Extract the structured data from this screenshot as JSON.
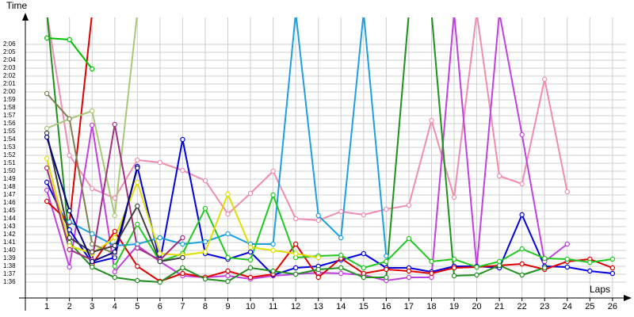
{
  "chart_data": {
    "type": "line",
    "y_label": "Time",
    "x_label": "Laps",
    "x": [
      1,
      2,
      3,
      4,
      5,
      6,
      7,
      8,
      9,
      10,
      11,
      12,
      13,
      14,
      15,
      16,
      17,
      18,
      19,
      20,
      21,
      22,
      23,
      24,
      25,
      26
    ],
    "xlim": [
      0.05,
      26.6
    ],
    "xticks": [
      1,
      2,
      3,
      4,
      5,
      6,
      7,
      8,
      9,
      10,
      11,
      12,
      13,
      14,
      15,
      16,
      17,
      18,
      19,
      20,
      21,
      22,
      23,
      24,
      25,
      26
    ],
    "ylim": [
      94,
      128.6
    ],
    "yticks": [
      {
        "value": 96,
        "label": "1:36"
      },
      {
        "value": 97,
        "label": "1:37"
      },
      {
        "value": 98,
        "label": "1:38"
      },
      {
        "value": 99,
        "label": "1:39"
      },
      {
        "value": 100,
        "label": "1:40"
      },
      {
        "value": 101,
        "label": "1:41"
      },
      {
        "value": 102,
        "label": "1:42"
      },
      {
        "value": 103,
        "label": "1:43"
      },
      {
        "value": 104,
        "label": "1:44"
      },
      {
        "value": 105,
        "label": "1:45"
      },
      {
        "value": 106,
        "label": "1:46"
      },
      {
        "value": 107,
        "label": "1:47"
      },
      {
        "value": 108,
        "label": "1:48"
      },
      {
        "value": 109,
        "label": "1:49"
      },
      {
        "value": 110,
        "label": "1:50"
      },
      {
        "value": 111,
        "label": "1:51"
      },
      {
        "value": 112,
        "label": "1:52"
      },
      {
        "value": 113,
        "label": "1:53"
      },
      {
        "value": 114,
        "label": "1:54"
      },
      {
        "value": 115,
        "label": "1:55"
      },
      {
        "value": 116,
        "label": "1:56"
      },
      {
        "value": 117,
        "label": "1:57"
      },
      {
        "value": 118,
        "label": "1:58"
      },
      {
        "value": 119,
        "label": "1:59"
      },
      {
        "value": 120,
        "label": "2:00"
      },
      {
        "value": 121,
        "label": "2:01"
      },
      {
        "value": 122,
        "label": "2:02"
      },
      {
        "value": 123,
        "label": "2:03"
      },
      {
        "value": 124,
        "label": "2:04"
      },
      {
        "value": 125,
        "label": "2:05"
      },
      {
        "value": 126,
        "label": "2:06"
      }
    ],
    "grid": true,
    "series": [
      {
        "color": "#f08cb0",
        "values": [
          130,
          112,
          107.8,
          106.6,
          111.4,
          111.1,
          110.1,
          108.8,
          104.6,
          107.2,
          110,
          104,
          103.8,
          104.9,
          104.5,
          105.2,
          105.7,
          116.4,
          106.7,
          130,
          109.4,
          108.4,
          121.6,
          107.4,
          null,
          null
        ]
      },
      {
        "color": "#c040e0",
        "values": [
          107.6,
          97.9,
          115.8,
          97.3,
          100.6,
          98.6,
          96.8,
          96.6,
          96.8,
          96.4,
          96.8,
          97,
          97.2,
          97.1,
          96.9,
          96.2,
          96.6,
          96.6,
          130,
          97.9,
          130,
          114.6,
          98.6,
          100.8,
          null,
          null
        ]
      },
      {
        "color": "#0000e0",
        "values": [
          108.6,
          102.6,
          98.4,
          99.1,
          110.6,
          98.6,
          114,
          99.6,
          98.9,
          99.8,
          96.9,
          97.8,
          98,
          98.8,
          99.6,
          97.8,
          97.8,
          97.3,
          98,
          98,
          97.8,
          104.5,
          98,
          97.9,
          97.4,
          97.1
        ]
      },
      {
        "color": "#e00000",
        "values": [
          106.2,
          103.5,
          130,
          null,
          null,
          null,
          null,
          null,
          null,
          null,
          null,
          null,
          null,
          null,
          null,
          null,
          null,
          null,
          null,
          null,
          null,
          null,
          null,
          null,
          null,
          null
        ]
      },
      {
        "color": "#e00000",
        "values": [
          null,
          null,
          98.2,
          102.4,
          98,
          96.1,
          97.1,
          96.6,
          97.4,
          96.6,
          97,
          100.8,
          96.6,
          99,
          97.1,
          97.6,
          97.4,
          97.1,
          97.8,
          97.9,
          98.1,
          98.3,
          97.6,
          98.6,
          98.9,
          97.8
        ]
      },
      {
        "color": "#1ea0e0",
        "values": [
          null,
          103.6,
          102.1,
          100.6,
          100.8,
          101.6,
          100.8,
          101.1,
          102.1,
          100.8,
          100.8,
          130,
          104.4,
          101.6,
          130,
          99.3,
          null,
          null,
          null,
          null,
          null,
          null,
          null,
          null,
          null,
          null
        ]
      },
      {
        "color": "#209020",
        "values": [
          130,
          101,
          97.9,
          96.6,
          96.2,
          96,
          97.8,
          96.4,
          96.1,
          97.8,
          97.4,
          97,
          97.6,
          97.8,
          96.6,
          96.6,
          130,
          130,
          96.8,
          96.9,
          98.1,
          96.9,
          97.8,
          null,
          null,
          null
        ]
      },
      {
        "color": "#20c820",
        "values": [
          null,
          null,
          null,
          98,
          103.3,
          98.6,
          99.6,
          105.3,
          99.1,
          98.8,
          107,
          99.1,
          99.3,
          99.4,
          97.8,
          98.6,
          101.5,
          98.6,
          98.9,
          97.9,
          98.6,
          100.2,
          99,
          98.9,
          98.5,
          98.9
        ]
      },
      {
        "color": "#00c000",
        "values": [
          126.8,
          126.6,
          122.9,
          null,
          null,
          null,
          null,
          null,
          null,
          null,
          null,
          null,
          null,
          null,
          null,
          null,
          null,
          null,
          null,
          null,
          null,
          null,
          null,
          null,
          null,
          null
        ]
      },
      {
        "color": "#e0e000",
        "values": [
          111.6,
          100.6,
          99.6,
          101.6,
          108.6,
          99.6,
          99.4,
          99.8,
          107.1,
          100.4,
          100,
          99.6,
          99.1,
          null,
          null,
          null,
          null,
          null,
          null,
          null,
          null,
          null,
          null,
          null,
          null,
          null
        ]
      },
      {
        "color": "#a8c878",
        "values": [
          115.4,
          116.6,
          117.6,
          104.4,
          130,
          null,
          null,
          null,
          null,
          null,
          null,
          null,
          null,
          null,
          null,
          null,
          null,
          null,
          null,
          null,
          null,
          null,
          null,
          null,
          null,
          null
        ]
      },
      {
        "color": "#808050",
        "values": [
          119.8,
          116.6,
          100.8,
          99.6,
          null,
          null,
          null,
          null,
          null,
          null,
          null,
          null,
          null,
          null,
          null,
          null,
          null,
          null,
          null,
          null,
          null,
          null,
          null,
          null,
          null,
          null
        ]
      },
      {
        "color": "#a03080",
        "values": [
          110.4,
          100.1,
          98.8,
          115.9,
          100.3,
          98.8,
          101.6,
          null,
          null,
          null,
          null,
          null,
          null,
          null,
          null,
          null,
          null,
          null,
          null,
          null,
          null,
          null,
          null,
          null,
          null,
          null
        ]
      },
      {
        "color": "#404040",
        "values": [
          114.8,
          101.6,
          99.8,
          100.6,
          105.6,
          98.6,
          99.1,
          null,
          null,
          null,
          null,
          null,
          null,
          null,
          null,
          null,
          null,
          null,
          null,
          null,
          null,
          null,
          null,
          null,
          null,
          null
        ]
      },
      {
        "color": "#000080",
        "values": [
          114.3,
          105,
          98.6,
          99.8,
          110.4,
          null,
          null,
          null,
          null,
          null,
          null,
          null,
          null,
          null,
          null,
          null,
          null,
          null,
          null,
          null,
          null,
          null,
          null,
          null,
          null,
          null
        ]
      }
    ]
  }
}
